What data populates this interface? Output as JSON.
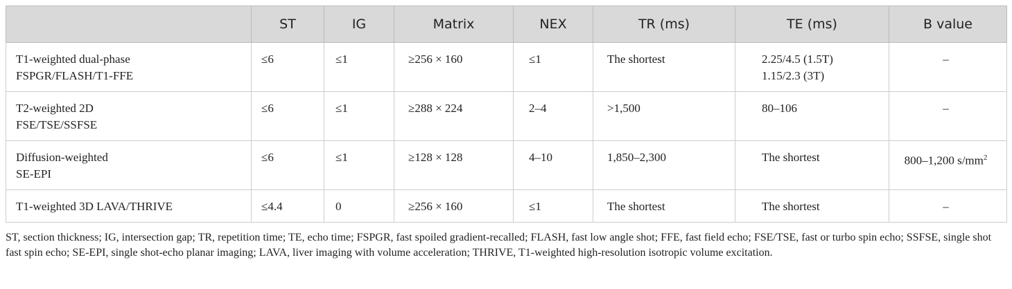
{
  "table": {
    "header": [
      "",
      "ST",
      "IG",
      "Matrix",
      "NEX",
      "TR (ms)",
      "TE (ms)",
      "B value"
    ],
    "rows": [
      [
        [
          "T1-weighted dual-phase",
          "FSPGR/FLASH/T1-FFE"
        ],
        [
          "≤6"
        ],
        [
          "≤1"
        ],
        [
          "≥256 × 160"
        ],
        [
          "≤1"
        ],
        [
          "The shortest"
        ],
        [
          "2.25/4.5 (1.5T)",
          "1.15/2.3 (3T)"
        ],
        [
          "–"
        ]
      ],
      [
        [
          "T2-weighted 2D",
          "FSE/TSE/SSFSE"
        ],
        [
          "≤6"
        ],
        [
          "≤1"
        ],
        [
          "≥288 × 224"
        ],
        [
          "2–4"
        ],
        [
          ">1,500"
        ],
        [
          "80–106"
        ],
        [
          "–"
        ]
      ],
      [
        [
          "Diffusion-weighted",
          "SE-EPI"
        ],
        [
          "≤6"
        ],
        [
          "≤1"
        ],
        [
          "≥128 × 128"
        ],
        [
          "4–10"
        ],
        [
          "1,850–2,300"
        ],
        [
          "The shortest"
        ],
        [
          {
            "text": "800–1,200 s/mm",
            "sup": "2"
          }
        ]
      ],
      [
        [
          "T1-weighted 3D LAVA/THRIVE"
        ],
        [
          "≤4.4"
        ],
        [
          "0"
        ],
        [
          "≥256 × 160"
        ],
        [
          "≤1"
        ],
        [
          "The shortest"
        ],
        [
          "The shortest"
        ],
        [
          "–"
        ]
      ]
    ]
  },
  "footnote": "ST, section thickness; IG, intersection gap; TR, repetition time; TE, echo time; FSPGR, fast spoiled gradient-recalled; FLASH, fast low angle shot; FFE, fast field echo; FSE/TSE, fast or turbo spin echo; SSFSE, single shot fast spin echo; SE-EPI, single shot-echo planar imaging; LAVA, liver imaging with volume acceleration; THRIVE, T1-weighted high-resolution isotropic volume excitation."
}
